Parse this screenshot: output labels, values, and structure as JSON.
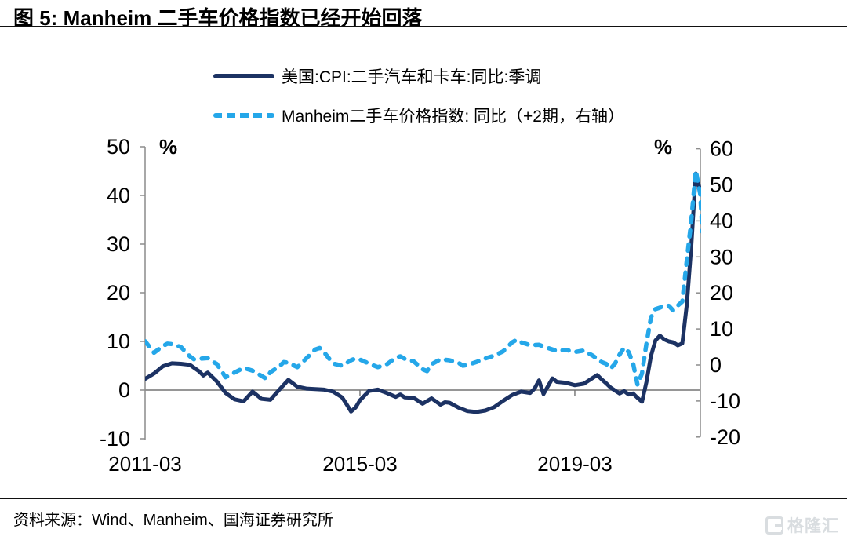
{
  "title": {
    "text": "图 5:  Manheim 二手车价格指数已经开始回落"
  },
  "legend": {
    "items": [
      {
        "label": "美国:CPI:二手汽车和卡车:同比:季调",
        "style": "solid",
        "color": "#1c3263"
      },
      {
        "label": "Manheim二手车价格指数: 同比（+2期，右轴）",
        "style": "dashed",
        "color": "#25a7e9"
      }
    ]
  },
  "footer": {
    "source": "资料来源：Wind、Manheim、国海证券研究所"
  },
  "watermark": {
    "text": "格隆汇"
  },
  "chart_data": {
    "type": "line",
    "title": "图 5: Manheim 二手车价格指数已经开始回落",
    "x_start_month": "2011-03",
    "x_unit": "months since 2011-03, monthly series",
    "grid": false,
    "legend_position": "top",
    "axis_color": "#8c8c8c",
    "zero_line_color": "#737373",
    "left_axis": {
      "unit": "%",
      "min": -10,
      "max": 50,
      "ticks": [
        50,
        40,
        30,
        20,
        10,
        0,
        -10
      ]
    },
    "right_axis": {
      "unit": "%",
      "min": -20,
      "max": 60,
      "ticks": [
        60,
        50,
        40,
        30,
        20,
        10,
        0,
        -10,
        -20
      ]
    },
    "x_ticks": [
      {
        "m": 0,
        "label": "2011-03"
      },
      {
        "m": 48,
        "label": "2015-03"
      },
      {
        "m": 96,
        "label": "2019-03"
      }
    ],
    "series": [
      {
        "name": "美国:CPI:二手汽车和卡车:同比:季调",
        "axis": "left",
        "style": "solid",
        "color": "#1c3263",
        "points": [
          [
            0,
            2.3
          ],
          [
            2,
            3.4
          ],
          [
            4,
            4.9
          ],
          [
            6,
            5.5
          ],
          [
            8,
            5.4
          ],
          [
            10,
            5.2
          ],
          [
            12,
            3.9
          ],
          [
            13,
            3.0
          ],
          [
            14,
            3.6
          ],
          [
            16,
            1.8
          ],
          [
            18,
            -0.6
          ],
          [
            20,
            -1.9
          ],
          [
            22,
            -2.3
          ],
          [
            24,
            -0.3
          ],
          [
            26,
            -1.8
          ],
          [
            28,
            -2.0
          ],
          [
            30,
            0.1
          ],
          [
            32,
            2.1
          ],
          [
            34,
            0.7
          ],
          [
            36,
            0.3
          ],
          [
            38,
            0.2
          ],
          [
            40,
            0.1
          ],
          [
            42,
            -0.3
          ],
          [
            44,
            -1.5
          ],
          [
            45,
            -2.9
          ],
          [
            46,
            -4.4
          ],
          [
            47,
            -3.6
          ],
          [
            48,
            -2.1
          ],
          [
            50,
            -0.2
          ],
          [
            52,
            0.1
          ],
          [
            54,
            -0.6
          ],
          [
            56,
            -1.4
          ],
          [
            57,
            -0.9
          ],
          [
            58,
            -1.5
          ],
          [
            60,
            -1.6
          ],
          [
            62,
            -2.8
          ],
          [
            64,
            -1.7
          ],
          [
            66,
            -3.0
          ],
          [
            67,
            -2.5
          ],
          [
            68,
            -2.6
          ],
          [
            70,
            -3.6
          ],
          [
            72,
            -4.3
          ],
          [
            74,
            -4.5
          ],
          [
            76,
            -4.2
          ],
          [
            78,
            -3.5
          ],
          [
            80,
            -2.2
          ],
          [
            82,
            -1.0
          ],
          [
            84,
            -0.3
          ],
          [
            86,
            -0.6
          ],
          [
            87,
            0.3
          ],
          [
            88,
            2.0
          ],
          [
            89,
            -0.8
          ],
          [
            91,
            2.4
          ],
          [
            92,
            1.7
          ],
          [
            94,
            1.5
          ],
          [
            96,
            1.0
          ],
          [
            98,
            1.3
          ],
          [
            100,
            2.5
          ],
          [
            101,
            3.1
          ],
          [
            102,
            2.2
          ],
          [
            103,
            1.4
          ],
          [
            104,
            0.5
          ],
          [
            105,
            -0.1
          ],
          [
            106,
            -0.7
          ],
          [
            107,
            -0.2
          ],
          [
            108,
            -0.9
          ],
          [
            109,
            -0.7
          ],
          [
            110,
            -1.6
          ],
          [
            111,
            -2.4
          ],
          [
            112,
            1.7
          ],
          [
            113,
            7.0
          ],
          [
            114,
            10.2
          ],
          [
            115,
            11.2
          ],
          [
            116,
            10.4
          ],
          [
            117,
            10.0
          ],
          [
            118,
            9.8
          ],
          [
            119,
            9.2
          ],
          [
            120,
            9.6
          ],
          [
            121,
            17.5
          ],
          [
            122,
            29.5
          ],
          [
            123,
            44.5
          ],
          [
            124,
            41.0
          ]
        ]
      },
      {
        "name": "Manheim二手车价格指数: 同比（+2期，右轴）",
        "axis": "right",
        "style": "dashed",
        "color": "#25a7e9",
        "points": [
          [
            0,
            6.6
          ],
          [
            2,
            3.4
          ],
          [
            4,
            5.3
          ],
          [
            5,
            5.9
          ],
          [
            6,
            5.8
          ],
          [
            8,
            5.0
          ],
          [
            10,
            2.4
          ],
          [
            11,
            1.5
          ],
          [
            12,
            1.7
          ],
          [
            14,
            1.9
          ],
          [
            15,
            1.0
          ],
          [
            16,
            0.3
          ],
          [
            18,
            -3.4
          ],
          [
            20,
            -2.1
          ],
          [
            22,
            -0.8
          ],
          [
            24,
            -1.6
          ],
          [
            26,
            -3.0
          ],
          [
            27,
            -3.8
          ],
          [
            28,
            -2.0
          ],
          [
            30,
            -0.4
          ],
          [
            31,
            0.8
          ],
          [
            32,
            0.6
          ],
          [
            34,
            -0.6
          ],
          [
            36,
            1.8
          ],
          [
            38,
            4.3
          ],
          [
            39,
            4.7
          ],
          [
            40,
            3.5
          ],
          [
            42,
            0.4
          ],
          [
            44,
            -0.2
          ],
          [
            46,
            1.3
          ],
          [
            47,
            1.8
          ],
          [
            48,
            1.5
          ],
          [
            50,
            0.4
          ],
          [
            52,
            -0.6
          ],
          [
            54,
            0.2
          ],
          [
            56,
            2.0
          ],
          [
            57,
            2.4
          ],
          [
            58,
            1.7
          ],
          [
            60,
            1.0
          ],
          [
            62,
            -1.2
          ],
          [
            63,
            -1.7
          ],
          [
            64,
            0.2
          ],
          [
            66,
            1.6
          ],
          [
            68,
            1.3
          ],
          [
            70,
            0.6
          ],
          [
            71,
            -0.2
          ],
          [
            72,
            0.0
          ],
          [
            74,
            0.8
          ],
          [
            76,
            1.8
          ],
          [
            78,
            2.6
          ],
          [
            80,
            3.8
          ],
          [
            82,
            6.3
          ],
          [
            83,
            7.0
          ],
          [
            84,
            6.3
          ],
          [
            86,
            5.5
          ],
          [
            88,
            5.6
          ],
          [
            90,
            4.7
          ],
          [
            92,
            3.9
          ],
          [
            94,
            4.2
          ],
          [
            96,
            3.6
          ],
          [
            98,
            4.0
          ],
          [
            100,
            2.6
          ],
          [
            102,
            0.8
          ],
          [
            103,
            0.3
          ],
          [
            104,
            -1.0
          ],
          [
            105,
            0.4
          ],
          [
            106,
            2.9
          ],
          [
            107,
            4.8
          ],
          [
            108,
            3.6
          ],
          [
            109,
            0.5
          ],
          [
            110,
            -5.5
          ],
          [
            111,
            -2.3
          ],
          [
            112,
            6.0
          ],
          [
            113,
            13.2
          ],
          [
            114,
            15.5
          ],
          [
            115,
            15.9
          ],
          [
            116,
            16.5
          ],
          [
            117,
            16.4
          ],
          [
            118,
            15.1
          ],
          [
            119,
            16.5
          ],
          [
            120,
            17.6
          ],
          [
            121,
            29.0
          ],
          [
            122,
            40.0
          ],
          [
            123,
            54.0
          ],
          [
            124,
            47.5
          ],
          [
            124.5,
            37.0
          ]
        ]
      }
    ]
  }
}
